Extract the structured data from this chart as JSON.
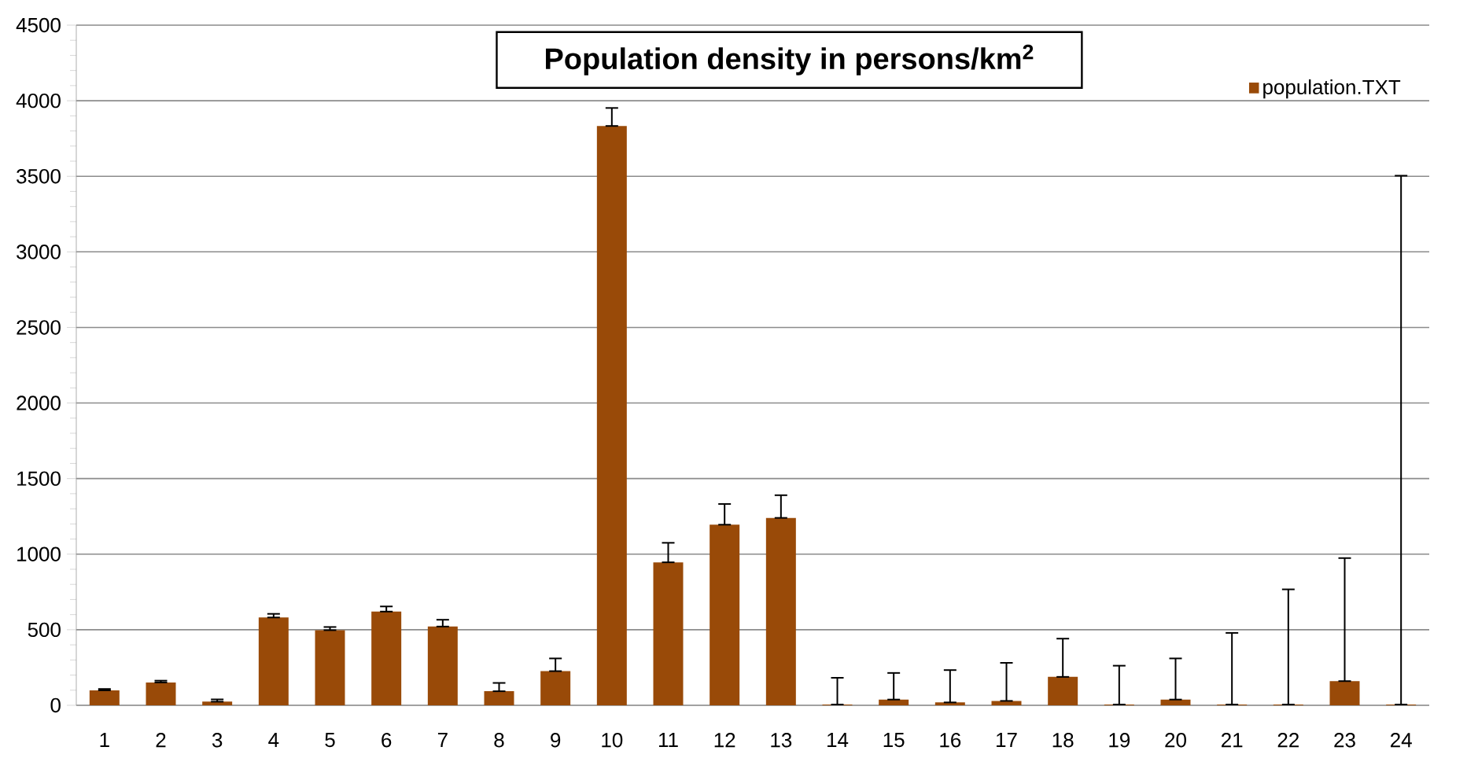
{
  "chart_data": {
    "type": "bar",
    "title": "Population density in persons/km$^{2}$",
    "categories": [
      "1",
      "2",
      "3",
      "4",
      "5",
      "6",
      "7",
      "8",
      "9",
      "10",
      "11",
      "12",
      "13",
      "14",
      "15",
      "16",
      "17",
      "18",
      "19",
      "20",
      "21",
      "22",
      "23",
      "24"
    ],
    "series": [
      {
        "name": "population.TXT",
        "color": "#994a08",
        "values": [
          99,
          151,
          24,
          581,
          497,
          620,
          521,
          93,
          226,
          3833,
          946,
          1195,
          1240,
          5,
          38,
          19,
          29,
          188,
          5,
          38,
          5,
          5,
          160,
          5
        ],
        "errors": [
          [
            99,
            108
          ],
          [
            151,
            163
          ],
          [
            24,
            39
          ],
          [
            581,
            605
          ],
          [
            497,
            518
          ],
          [
            620,
            654
          ],
          [
            521,
            566
          ],
          [
            93,
            148
          ],
          [
            226,
            310
          ],
          [
            3833,
            3952
          ],
          [
            946,
            1075
          ],
          [
            1195,
            1332
          ],
          [
            1240,
            1390
          ],
          [
            5,
            182
          ],
          [
            38,
            214
          ],
          [
            19,
            233
          ],
          [
            29,
            281
          ],
          [
            188,
            441
          ],
          [
            5,
            262
          ],
          [
            38,
            310
          ],
          [
            5,
            479
          ],
          [
            5,
            767
          ],
          [
            160,
            974
          ],
          [
            5,
            3504
          ]
        ]
      }
    ],
    "ylim": [
      0,
      4500
    ],
    "yticks": [
      0,
      500,
      1000,
      1500,
      2000,
      2500,
      3000,
      3500,
      4000,
      4500
    ],
    "grid": "y",
    "legend": "top right"
  }
}
